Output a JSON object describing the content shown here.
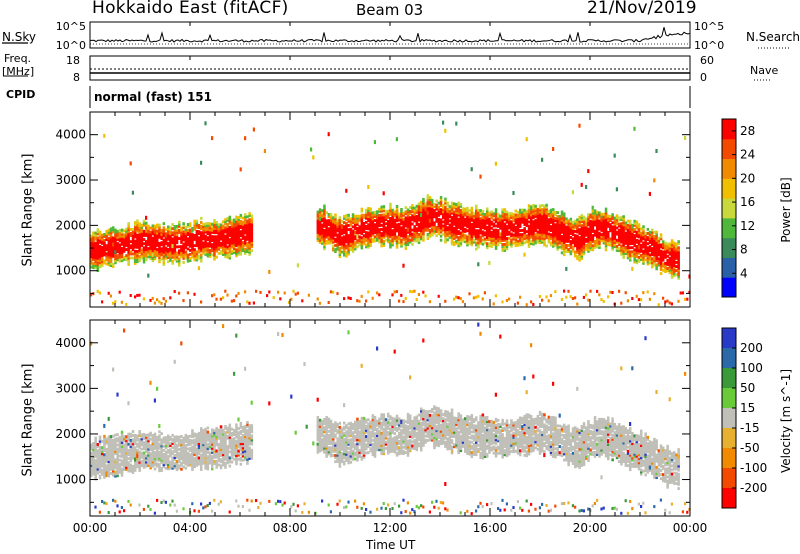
{
  "header": {
    "title": "Hokkaido East (fitACF)",
    "beam": "Beam 03",
    "date": "21/Nov/2019"
  },
  "strips": {
    "nsky_label": "N.Sky",
    "nsky_ticks": [
      "10^5",
      "10^0"
    ],
    "nsearch_label": "N.Search",
    "nsearch_ticks": [
      "10^5",
      "10^0"
    ],
    "freq_label_1": "Freq.",
    "freq_label_2": "[MHz]",
    "freq_ticks": [
      "18",
      "8"
    ],
    "nave_label": "Nave",
    "nave_ticks": [
      "60",
      "0"
    ],
    "cpid_label": "CPID",
    "cpid_value": "normal (fast) 151"
  },
  "panels": {
    "ylabel": "Slant Range [km]",
    "xlabel": "Time UT"
  },
  "colors": {
    "power": [
      "#0000ff",
      "#2a60a8",
      "#3a8a5a",
      "#4fb83a",
      "#c9d83a",
      "#f0c000",
      "#f28a00",
      "#f44a00",
      "#ff0000"
    ],
    "velocity": [
      "#2a3ac8",
      "#2a6aa8",
      "#3a9a3a",
      "#6acb3a",
      "#c0c0b8",
      "#e8b030",
      "#f28a00",
      "#f44a00",
      "#ff0000"
    ],
    "ground_scatter": "#c0c0b8"
  },
  "chart_data": [
    {
      "type": "heatmap",
      "title": "Beam 03",
      "xlabel": "Time UT",
      "ylabel": "Slant Range [km]",
      "x_ticks": [
        "00:00",
        "04:00",
        "08:00",
        "12:00",
        "16:00",
        "20:00",
        "00:00"
      ],
      "xlim_hours": [
        0,
        24
      ],
      "y_ticks": [
        1000,
        2000,
        3000,
        4000
      ],
      "ylim": [
        200,
        4500
      ],
      "colorbar": {
        "label": "Power [dB]",
        "ticks": [
          4,
          8,
          12,
          16,
          20,
          24,
          28
        ],
        "range": [
          0,
          30
        ]
      },
      "echo_band_center_km": [
        [
          0.0,
          1450
        ],
        [
          0.5,
          1500
        ],
        [
          1.0,
          1550
        ],
        [
          1.5,
          1600
        ],
        [
          2.0,
          1650
        ],
        [
          2.5,
          1650
        ],
        [
          3.0,
          1600
        ],
        [
          3.5,
          1600
        ],
        [
          4.0,
          1650
        ],
        [
          4.5,
          1700
        ],
        [
          5.0,
          1700
        ],
        [
          5.5,
          1750
        ],
        [
          6.0,
          1800
        ],
        [
          6.5,
          1850
        ],
        [
          9.0,
          2000
        ],
        [
          9.5,
          1950
        ],
        [
          10.0,
          1750
        ],
        [
          10.5,
          1850
        ],
        [
          11.0,
          1950
        ],
        [
          11.5,
          2000
        ],
        [
          12.0,
          2000
        ],
        [
          12.5,
          1950
        ],
        [
          13.0,
          2050
        ],
        [
          13.5,
          2200
        ],
        [
          14.0,
          2150
        ],
        [
          14.5,
          2050
        ],
        [
          15.0,
          2000
        ],
        [
          15.5,
          1950
        ],
        [
          16.0,
          1950
        ],
        [
          16.5,
          1900
        ],
        [
          17.0,
          1950
        ],
        [
          17.5,
          2000
        ],
        [
          18.0,
          2050
        ],
        [
          18.5,
          1950
        ],
        [
          19.0,
          1800
        ],
        [
          19.5,
          1700
        ],
        [
          20.0,
          1900
        ],
        [
          20.5,
          1950
        ],
        [
          21.0,
          1850
        ],
        [
          21.5,
          1700
        ],
        [
          22.0,
          1600
        ],
        [
          22.5,
          1500
        ],
        [
          23.0,
          1300
        ],
        [
          23.5,
          1250
        ]
      ]
    },
    {
      "type": "heatmap",
      "xlabel": "Time UT",
      "ylabel": "Slant Range [km]",
      "x_ticks": [
        "00:00",
        "04:00",
        "08:00",
        "12:00",
        "16:00",
        "20:00",
        "00:00"
      ],
      "xlim_hours": [
        0,
        24
      ],
      "y_ticks": [
        1000,
        2000,
        3000,
        4000
      ],
      "ylim": [
        200,
        4500
      ],
      "colorbar": {
        "label": "Velocity [m s^-1]",
        "ticks": [
          200,
          100,
          50,
          15,
          -15,
          -50,
          -100,
          -200
        ]
      }
    }
  ]
}
